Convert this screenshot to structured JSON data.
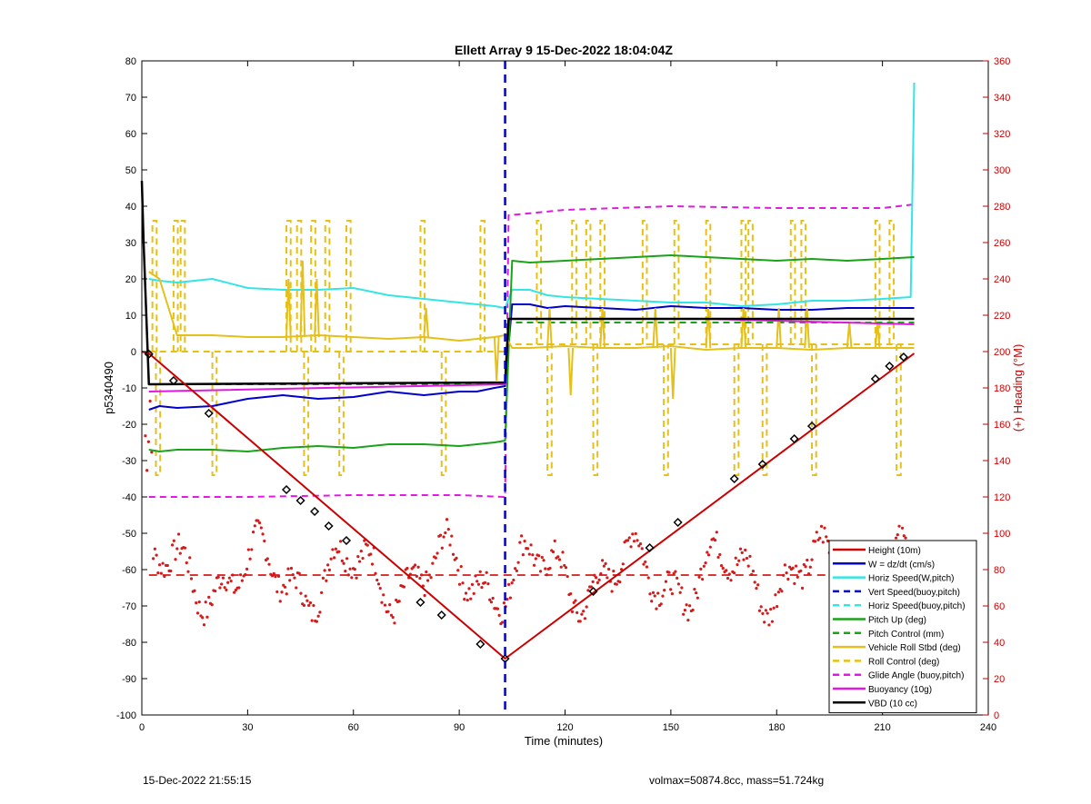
{
  "chart_data": {
    "type": "line",
    "title": "Ellett Array 9 15-Dec-2022 18:04:04Z",
    "xlabel": "Time (minutes)",
    "ylabel": "p5340490",
    "y2label": "(+) Heading (°M)",
    "xlim": [
      0,
      240
    ],
    "ylim": [
      -100,
      80
    ],
    "y2lim": [
      0,
      360
    ],
    "xticks": [
      0,
      30,
      60,
      90,
      120,
      150,
      180,
      210,
      240
    ],
    "yticks": [
      -100,
      -90,
      -80,
      -70,
      -60,
      -50,
      -40,
      -30,
      -20,
      -10,
      0,
      10,
      20,
      30,
      40,
      50,
      60,
      70,
      80
    ],
    "y2ticks": [
      0,
      20,
      40,
      60,
      80,
      100,
      120,
      140,
      160,
      180,
      200,
      220,
      240,
      260,
      280,
      300,
      320,
      340,
      360
    ],
    "grid": false,
    "legend_position": "bottom-right",
    "apogee_line_x": 103,
    "heading_mean_deg": 77,
    "colors": {
      "height": "#cc0000",
      "w": "#0000cc",
      "horiz_speed_w": "#33e5e5",
      "vert_speed_buoy": "#0000cc",
      "horiz_speed_buoy": "#33e5e5",
      "pitch": "#1aa31a",
      "pitch_control": "#1aa31a",
      "roll": "#e5c01a",
      "roll_control": "#e5c01a",
      "glide_angle": "#e01ae0",
      "buoyancy": "#e01ae0",
      "vbd": "#000000",
      "heading": "#d41a1a",
      "right_axis": "#cc0000"
    },
    "legend": [
      {
        "label": "Height (10m)",
        "color": "#cc0000",
        "dash": false
      },
      {
        "label": "W = dz/dt (cm/s)",
        "color": "#0000cc",
        "dash": false
      },
      {
        "label": "Horiz Speed(W,pitch)",
        "color": "#33e5e5",
        "dash": false
      },
      {
        "label": "Vert Speed(buoy,pitch)",
        "color": "#0000cc",
        "dash": true
      },
      {
        "label": "Horiz Speed(buoy,pitch)",
        "color": "#33e5e5",
        "dash": true
      },
      {
        "label": "Pitch Up (deg)",
        "color": "#1aa31a",
        "dash": false
      },
      {
        "label": "Pitch Control (mm)",
        "color": "#1aa31a",
        "dash": true
      },
      {
        "label": "Vehicle Roll Stbd (deg)",
        "color": "#e5c01a",
        "dash": false
      },
      {
        "label": "Roll Control (deg)",
        "color": "#e5c01a",
        "dash": true
      },
      {
        "label": "Glide Angle (buoy,pitch)",
        "color": "#e01ae0",
        "dash": true
      },
      {
        "label": "Buoyancy (10g)",
        "color": "#e01ae0",
        "dash": false
      },
      {
        "label": "VBD (10 cc)",
        "color": "#000000",
        "dash": false
      }
    ],
    "series": [
      {
        "name": "Height (10m)",
        "x": [
          0,
          2,
          103,
          219
        ],
        "y": [
          0,
          -0.5,
          -84.5,
          -0.5
        ]
      },
      {
        "name": "Height markers",
        "x": [
          2,
          9,
          19,
          41,
          45,
          49,
          53,
          58,
          79,
          85,
          96,
          103,
          128,
          144,
          152,
          168,
          176,
          185,
          190,
          208,
          212,
          216
        ],
        "y": [
          -0.7,
          -8,
          -17,
          -38,
          -41,
          -44,
          -48,
          -52,
          -69,
          -72.5,
          -80.5,
          -84.5,
          -66,
          -54,
          -47,
          -35,
          -31,
          -24,
          -20.5,
          -7.5,
          -4,
          -1.5
        ]
      },
      {
        "name": "W = dz/dt (cm/s)",
        "x": [
          2,
          5,
          10,
          20,
          30,
          40,
          50,
          60,
          70,
          80,
          90,
          95,
          100,
          103,
          105,
          110,
          115,
          120,
          130,
          140,
          150,
          160,
          170,
          180,
          190,
          200,
          210,
          219
        ],
        "y": [
          -16,
          -15,
          -15.5,
          -15,
          -13,
          -12,
          -13,
          -12.5,
          -11,
          -12,
          -11,
          -11,
          -10,
          -9.5,
          13,
          13,
          12,
          12.5,
          12,
          11.5,
          12.5,
          12,
          12,
          11.5,
          11.5,
          12,
          12,
          12
        ]
      },
      {
        "name": "Horiz Speed(W,pitch)",
        "x": [
          2,
          5,
          10,
          20,
          30,
          40,
          50,
          60,
          70,
          80,
          90,
          100,
          103,
          105,
          110,
          115,
          120,
          130,
          140,
          150,
          160,
          170,
          180,
          190,
          200,
          210,
          218,
          219
        ],
        "y": [
          20,
          19.5,
          19,
          20,
          17.5,
          17,
          17,
          17.5,
          15.5,
          14.5,
          13.5,
          12.5,
          12,
          17,
          17,
          15.5,
          15,
          14.5,
          14,
          13.5,
          13.5,
          12.5,
          13,
          14,
          14,
          14.5,
          15,
          74
        ]
      },
      {
        "name": "Pitch Up (deg)",
        "x": [
          2,
          5,
          10,
          20,
          30,
          40,
          50,
          60,
          70,
          80,
          90,
          100,
          103,
          105,
          110,
          120,
          130,
          140,
          150,
          160,
          170,
          180,
          190,
          200,
          210,
          219
        ],
        "y": [
          -27,
          -27.5,
          -27,
          -27,
          -27.5,
          -26.5,
          -26,
          -26.5,
          -25.5,
          -25.5,
          -26,
          -25,
          -24.5,
          25,
          24.5,
          25,
          25.5,
          26,
          26.5,
          26,
          25.5,
          25,
          25.5,
          25,
          25.5,
          26
        ]
      },
      {
        "name": "Pitch Control (mm)",
        "x": [
          2,
          103,
          104,
          219
        ],
        "y": [
          -9,
          -9,
          8,
          8
        ]
      },
      {
        "name": "Vehicle Roll Stbd (deg)",
        "x": [
          2,
          5,
          10,
          20,
          30,
          40,
          50,
          60,
          70,
          80,
          90,
          100,
          103,
          105,
          110,
          120,
          130,
          140,
          150,
          160,
          170,
          180,
          190,
          200,
          210,
          219
        ],
        "y": [
          22,
          20,
          4.5,
          4.5,
          4,
          4,
          4.5,
          4,
          3.5,
          4,
          3,
          4,
          4.5,
          1,
          1,
          1.5,
          1,
          1,
          1.5,
          0.5,
          1,
          1,
          0.5,
          1,
          1,
          1
        ]
      },
      {
        "name": "Roll Control (deg)",
        "x": [
          2,
          103,
          104,
          219
        ],
        "y": [
          0,
          0,
          2,
          2
        ]
      },
      {
        "name": "Glide Angle (buoy,pitch)",
        "x": [
          2,
          10,
          30,
          60,
          90,
          103,
          104,
          120,
          150,
          180,
          210,
          219
        ],
        "y": [
          -40,
          -40,
          -40,
          -39.5,
          -39.5,
          -40,
          37.5,
          39,
          40,
          39.5,
          39.5,
          40.5
        ]
      },
      {
        "name": "Buoyancy (10g)",
        "x": [
          2,
          103,
          104,
          160,
          219
        ],
        "y": [
          -11,
          -9,
          9,
          9,
          7.5
        ]
      },
      {
        "name": "VBD (10 cc)",
        "x": [
          0,
          0.5,
          2,
          103,
          104,
          219
        ],
        "y": [
          47,
          30,
          -9,
          -8.5,
          9,
          9
        ]
      }
    ],
    "annotations": {
      "footer_left": "15-Dec-2022 21:55:15",
      "footer_right": "volmax=50874.8cc, mass=51.724kg"
    }
  }
}
